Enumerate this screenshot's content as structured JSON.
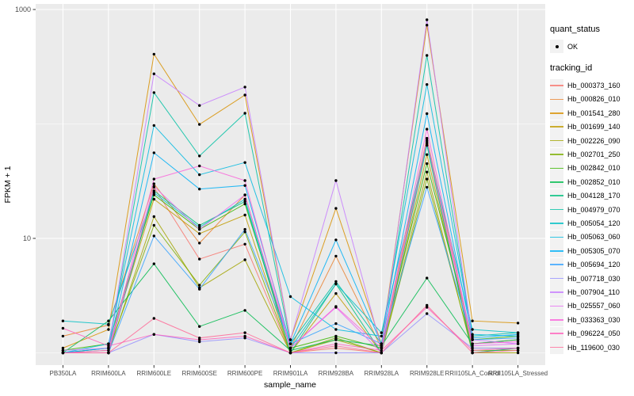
{
  "figure": {
    "y_axis": {
      "label": "FPKM + 1",
      "tick_top": "1000",
      "tick_mid": "10"
    },
    "x_axis": {
      "label": "sample_name"
    },
    "legend": {
      "quant_status_title": "quant_status",
      "quant_status_items": [
        {
          "label": "OK",
          "symbol": "point"
        }
      ],
      "tracking_id_title": "tracking_id"
    }
  },
  "chart_data": {
    "type": "line",
    "title": "",
    "xlabel": "sample_name",
    "ylabel": "FPKM + 1",
    "y_scale": "log10",
    "ylim": [
      0.93,
      1100
    ],
    "y_major_breaks": [
      10,
      1000
    ],
    "y_minor_breaks": [
      1,
      100
    ],
    "grid": true,
    "legend_position": "right",
    "panel_bg": "#EBEBEB",
    "gridline_color": "#FFFFFF",
    "point_color": "#000000",
    "axis_text_color": "#4D4D4D",
    "categories": [
      "PB350LA",
      "RRIM600LA",
      "RRIM600LE",
      "RRIM600SE",
      "RRIM600PE",
      "RRIM901LA",
      "RRIM928BA",
      "RRIM928LA",
      "RRIM928LE",
      "RRII105LA_Control",
      "RRII105LA_Stressed"
    ],
    "series": [
      {
        "name": "Hb_000373_160",
        "color": "#F8766D",
        "values": [
          1.0,
          1.0,
          28,
          6.6,
          8.9,
          1.0,
          1.1,
          1.0,
          70,
          1.0,
          1.1
        ]
      },
      {
        "name": "Hb_000826_010",
        "color": "#EA8331",
        "values": [
          1.4,
          1.75,
          30,
          9.1,
          24,
          1.1,
          7.0,
          1.1,
          75,
          1.2,
          1.3
        ]
      },
      {
        "name": "Hb_001541_280",
        "color": "#D89000",
        "values": [
          1.1,
          1.6,
          407,
          99,
          179,
          1.3,
          18.3,
          1.2,
          731,
          1.9,
          1.82
        ]
      },
      {
        "name": "Hb_001699_140",
        "color": "#C09B00",
        "values": [
          1.0,
          1.1,
          22,
          11,
          16,
          1.0,
          3.3,
          1.0,
          54,
          1.1,
          1.1
        ]
      },
      {
        "name": "Hb_002226_090",
        "color": "#A3A500",
        "values": [
          1.0,
          1.0,
          15.5,
          3.7,
          6.5,
          1.0,
          1.3,
          1.0,
          38,
          1.0,
          1.0
        ]
      },
      {
        "name": "Hb_002701_250",
        "color": "#7CAE00",
        "values": [
          1.0,
          1.05,
          13,
          3.9,
          11.4,
          1.0,
          1.35,
          1.0,
          33,
          1.05,
          1.05
        ]
      },
      {
        "name": "Hb_002842_010",
        "color": "#39B600",
        "values": [
          1.05,
          1.2,
          24,
          12,
          20,
          1.1,
          1.4,
          1.1,
          45,
          1.3,
          1.4
        ]
      },
      {
        "name": "Hb_002852_010",
        "color": "#00BB4E",
        "values": [
          1.0,
          1.9,
          6.0,
          1.7,
          2.35,
          1.05,
          1.3,
          1.15,
          4.5,
          1.2,
          1.3
        ]
      },
      {
        "name": "Hb_004128_170",
        "color": "#00BF7D",
        "values": [
          1.0,
          1.0,
          26,
          13,
          21,
          1.0,
          4.0,
          1.0,
          65,
          1.0,
          1.1
        ]
      },
      {
        "name": "Hb_004979_070",
        "color": "#00C1A3",
        "values": [
          1.0,
          1.1,
          188,
          52.5,
          124,
          1.2,
          4.2,
          1.2,
          397,
          1.4,
          1.5
        ]
      },
      {
        "name": "Hb_005054_120",
        "color": "#00BFC4",
        "values": [
          1.9,
          1.78,
          25,
          12.5,
          22,
          1.1,
          4.0,
          1.5,
          68,
          1.6,
          1.5
        ]
      },
      {
        "name": "Hb_005063_060",
        "color": "#00BAE0",
        "values": [
          1.0,
          1.2,
          97,
          36,
          46,
          3.1,
          1.6,
          1.4,
          221,
          1.45,
          1.4
        ]
      },
      {
        "name": "Hb_005305_070",
        "color": "#00B0F6",
        "values": [
          1.0,
          1.1,
          56,
          27,
          29,
          1.2,
          9.7,
          1.2,
          123,
          1.35,
          1.45
        ]
      },
      {
        "name": "Hb_005694_120",
        "color": "#35A2FF",
        "values": [
          1.0,
          1.0,
          10.5,
          3.6,
          12,
          1.2,
          1.8,
          1.2,
          28,
          1.3,
          1.35
        ]
      },
      {
        "name": "Hb_007718_030",
        "color": "#9590FF",
        "values": [
          1.0,
          1.0,
          1.45,
          1.25,
          1.35,
          1.0,
          1.0,
          1.0,
          2.2,
          1.1,
          1.1
        ]
      },
      {
        "name": "Hb_007904_110",
        "color": "#C77CFF",
        "values": [
          1.05,
          1.1,
          274,
          145,
          210,
          1.3,
          32,
          1.1,
          813,
          1.3,
          1.2
        ]
      },
      {
        "name": "Hb_025557_060",
        "color": "#E76BF3",
        "values": [
          1.0,
          1.0,
          28.5,
          12,
          24,
          1.1,
          2.5,
          1.0,
          72,
          1.15,
          1.2
        ]
      },
      {
        "name": "Hb_033363_030",
        "color": "#FA62DB",
        "values": [
          1.0,
          1.05,
          33,
          43,
          32,
          1.1,
          2.54,
          1.1,
          90,
          1.2,
          1.25
        ]
      },
      {
        "name": "Hb_096224_050",
        "color": "#FF62BC",
        "values": [
          1.64,
          1.15,
          1.45,
          1.3,
          1.4,
          1.0,
          1.2,
          1.05,
          2.5,
          1.05,
          1.1
        ]
      },
      {
        "name": "Hb_119600_030",
        "color": "#FF6A98",
        "values": [
          1.0,
          1.0,
          2.0,
          1.35,
          1.5,
          1.0,
          1.15,
          1.0,
          2.6,
          1.0,
          1.05
        ]
      }
    ]
  }
}
